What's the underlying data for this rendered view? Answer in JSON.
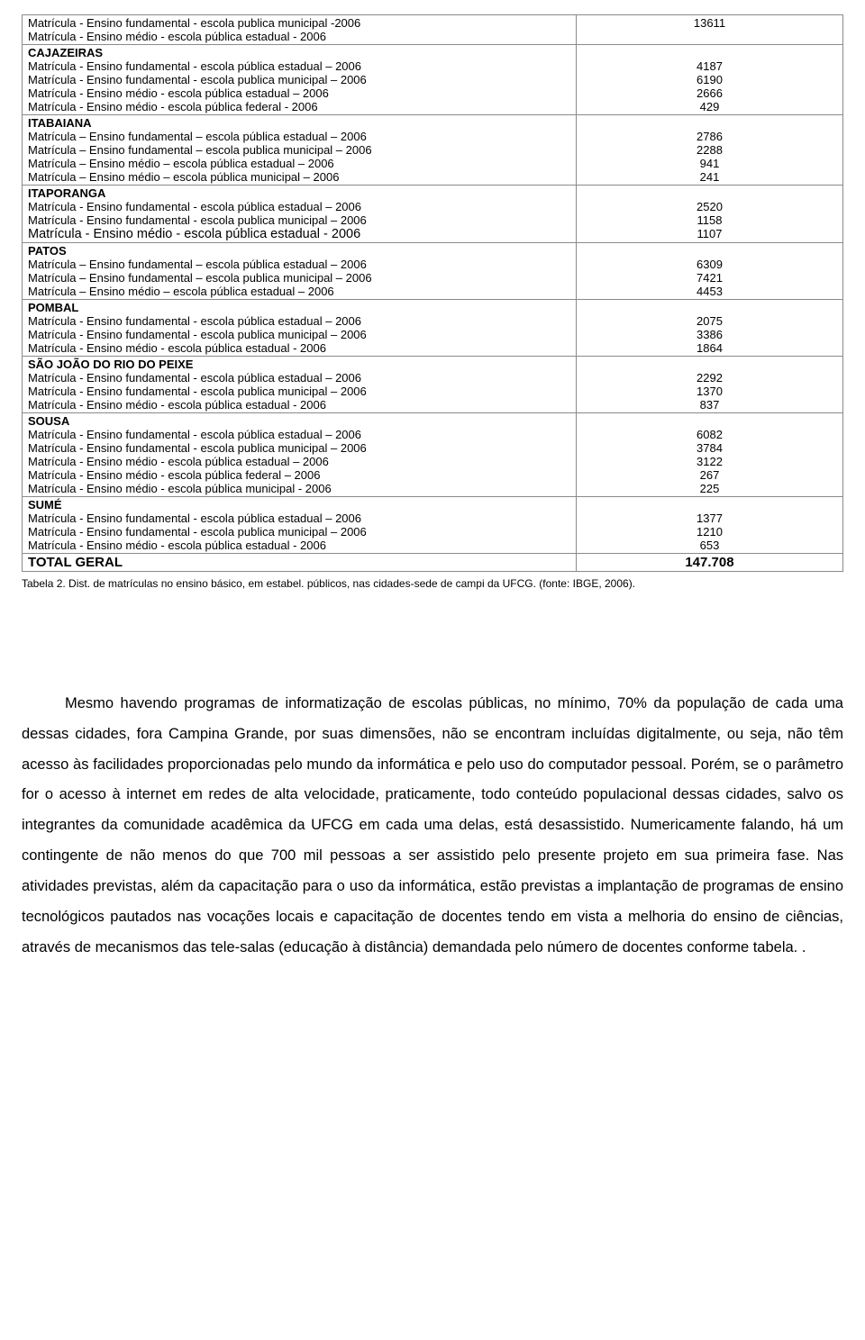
{
  "table": {
    "row0": {
      "label_a": "Matrícula - Ensino fundamental - escola publica municipal -2006",
      "label_b": "Matrícula - Ensino médio - escola pública estadual - 2006",
      "val_a": "13611"
    },
    "cajazeiras": {
      "title": "CAJAZEIRAS",
      "l1": " Matrícula - Ensino fundamental - escola pública estadual – 2006",
      "l2": "Matrícula - Ensino fundamental - escola publica municipal – 2006",
      "l3": "Matrícula - Ensino médio - escola pública estadual – 2006",
      "l4": "Matrícula - Ensino médio - escola pública federal - 2006",
      "v1": "4187",
      "v2": "6190",
      "v3": "2666",
      "v4": "429"
    },
    "itabaiana": {
      "title": "ITABAIANA",
      "l1": "Matrícula – Ensino fundamental – escola pública estadual – 2006",
      "l2": "Matrícula – Ensino fundamental – escola publica municipal – 2006",
      "l3": "Matrícula – Ensino médio – escola pública estadual – 2006",
      "l4": "Matrícula – Ensino médio – escola pública municipal – 2006",
      "v1": "2786",
      "v2": "2288",
      "v3": "941",
      "v4": "241"
    },
    "itaporanga": {
      "title": "ITAPORANGA",
      "l1": "Matrícula - Ensino fundamental - escola pública estadual – 2006",
      "l2": "Matrícula - Ensino fundamental - escola publica municipal – 2006",
      "l3": "Matrícula - Ensino médio - escola pública estadual - 2006",
      "v1": "2520",
      "v2": "1158",
      "v3": "1107"
    },
    "patos": {
      "title": "PATOS",
      "l1": "Matrícula – Ensino fundamental – escola pública estadual – 2006",
      "l2": "Matrícula – Ensino fundamental – escola publica municipal – 2006",
      "l3": "Matrícula – Ensino médio – escola pública estadual – 2006",
      "v1": "6309",
      "v2": "7421",
      "v3": "4453"
    },
    "pombal": {
      "title": "POMBAL",
      "l1": "Matrícula - Ensino fundamental - escola pública estadual – 2006",
      "l2": "Matrícula - Ensino fundamental - escola publica municipal – 2006",
      "l3": "Matrícula - Ensino médio - escola pública estadual - 2006",
      "v1": "2075",
      "v2": "3386",
      "v3": "1864"
    },
    "saojoao": {
      "title": "SÃO JOÃO DO RIO DO PEIXE",
      "l1": "Matrícula - Ensino fundamental - escola pública estadual – 2006",
      "l2": "Matrícula - Ensino fundamental - escola publica municipal – 2006",
      "l3": "Matrícula - Ensino médio - escola pública estadual - 2006",
      "v1": "2292",
      "v2": "1370",
      "v3": "837"
    },
    "sousa": {
      "title": "SOUSA",
      "l1": "Matrícula - Ensino fundamental - escola pública estadual – 2006",
      "l2": "Matrícula - Ensino fundamental - escola publica municipal – 2006",
      "l3": "Matrícula - Ensino médio - escola pública estadual – 2006",
      "l4": "Matrícula - Ensino médio - escola pública federal – 2006",
      "l5": "Matrícula - Ensino médio - escola pública municipal - 2006",
      "v1": "6082",
      "v2": "3784",
      "v3": "3122",
      "v4": "267",
      "v5": "225"
    },
    "sume": {
      "title": "SUMÉ",
      "l1": "Matrícula - Ensino fundamental - escola pública estadual – 2006",
      "l2": "Matrícula - Ensino fundamental - escola publica municipal – 2006",
      "l3": "Matrícula - Ensino médio - escola pública estadual - 2006",
      "v1": "1377",
      "v2": "1210",
      "v3": "653"
    },
    "total": {
      "label": "TOTAL GERAL",
      "value": "147.708"
    }
  },
  "caption": "Tabela 2. Dist. de matrículas no ensino básico, em estabel. públicos, nas cidades-sede de campi da UFCG. (fonte: IBGE, 2006).",
  "paragraph": "Mesmo havendo programas de informatização de escolas públicas, no mínimo, 70% da população de cada uma dessas cidades, fora Campina Grande, por suas dimensões, não se encontram incluídas digitalmente, ou seja, não têm acesso às facilidades proporcionadas pelo mundo da informática e pelo uso do computador pessoal. Porém, se o parâmetro for o acesso à internet em redes de alta velocidade, praticamente, todo conteúdo populacional dessas cidades, salvo os integrantes da comunidade acadêmica da UFCG em cada uma delas, está desassistido.  Numericamente falando, há um contingente de não menos do que 700 mil pessoas a ser assistido pelo presente projeto em sua primeira fase. Nas atividades previstas, além da capacitação para o uso da informática, estão previstas a implantação de programas de ensino tecnológicos pautados nas vocações locais  e capacitação de docentes tendo em vista a melhoria do ensino de ciências, através de mecanismos das tele-salas (educação à distância) demandada pelo número de docentes conforme tabela. ."
}
